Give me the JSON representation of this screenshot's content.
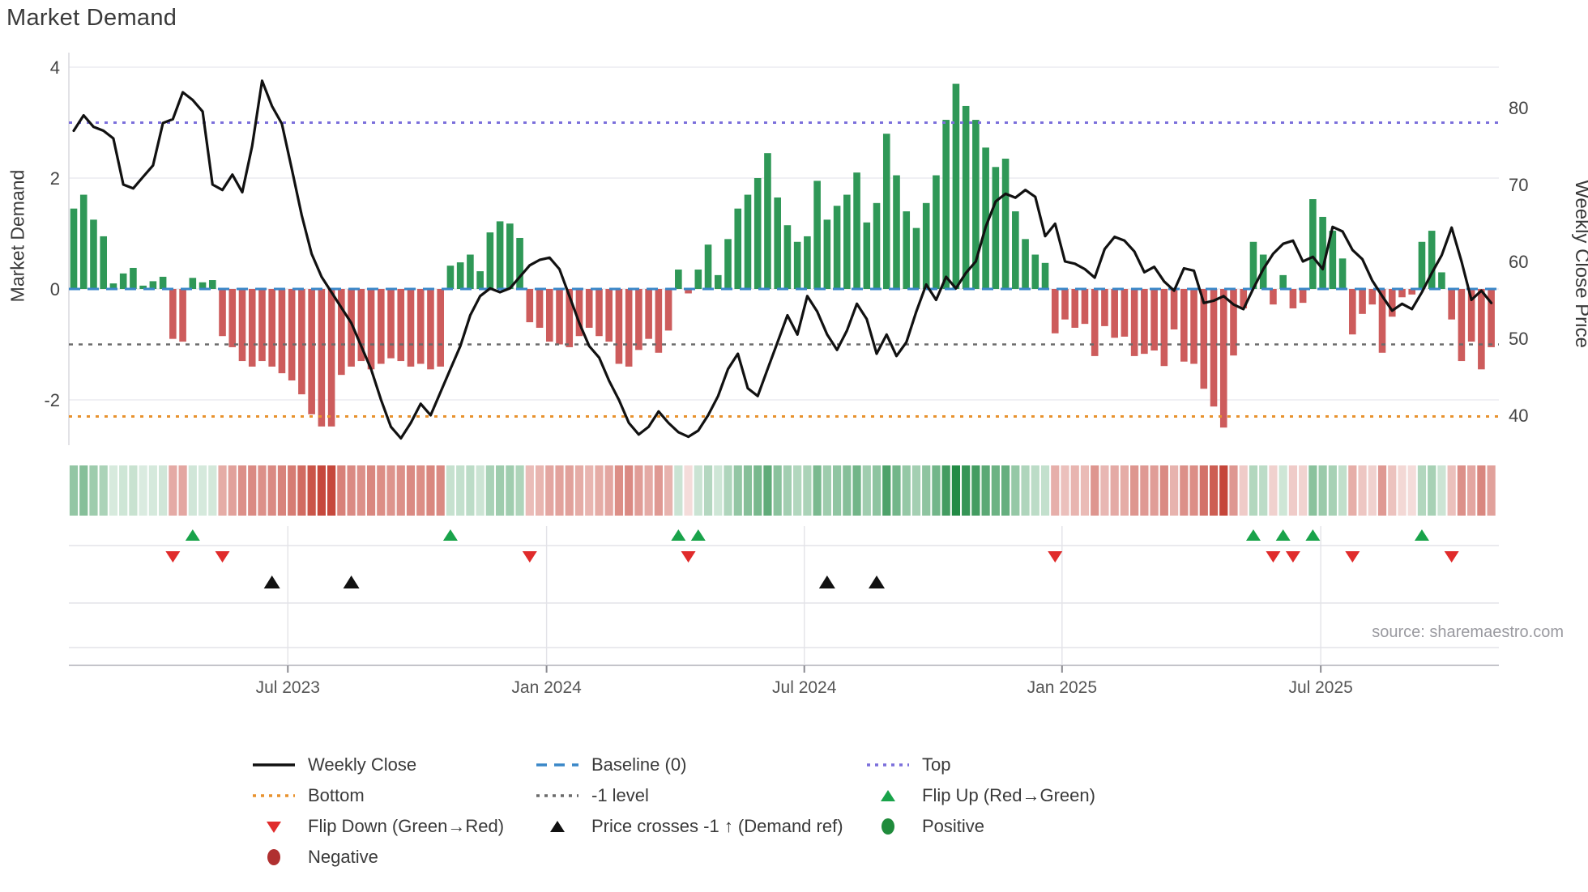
{
  "title": "Market Demand",
  "source": "source: sharemaestro.com",
  "axes": {
    "left": {
      "label": "Market Demand",
      "ticks": [
        4,
        2,
        0,
        -2
      ]
    },
    "right": {
      "label": "Weekly Close Price",
      "ticks": [
        80,
        70,
        60,
        50,
        40
      ]
    },
    "x": {
      "tick_labels": [
        "Jul 2023",
        "Jan 2024",
        "Jul 2024",
        "Jan 2025",
        "Jul 2025"
      ],
      "tick_weeks": [
        21.6,
        47.7,
        73.7,
        99.7,
        125.8
      ]
    }
  },
  "chart_data": {
    "type": "combo-bar-line",
    "title": "Market Demand",
    "ylabel_left": "Market Demand",
    "ylabel_right": "Weekly Close Price",
    "ylim_left": [
      -2.82,
      4.26
    ],
    "ylim_right": [
      36.1,
      87.2
    ],
    "x_unit": "week",
    "n_weeks": 144,
    "demand_bars": [
      1.45,
      1.7,
      1.25,
      0.95,
      0.1,
      0.28,
      0.38,
      0.06,
      0.14,
      0.22,
      -0.9,
      -0.95,
      0.2,
      0.12,
      0.16,
      -0.85,
      -1.05,
      -1.3,
      -1.4,
      -1.3,
      -1.4,
      -1.52,
      -1.65,
      -1.9,
      -2.26,
      -2.48,
      -2.48,
      -1.55,
      -1.4,
      -1.3,
      -1.45,
      -1.35,
      -1.25,
      -1.3,
      -1.4,
      -1.35,
      -1.45,
      -1.4,
      0.42,
      0.48,
      0.62,
      0.32,
      1.02,
      1.22,
      1.18,
      0.92,
      -0.6,
      -0.7,
      -0.95,
      -1.0,
      -1.05,
      -0.85,
      -0.7,
      -0.85,
      -0.95,
      -1.35,
      -1.4,
      -1.1,
      -0.9,
      -1.15,
      -0.75,
      0.35,
      -0.08,
      0.35,
      0.8,
      0.25,
      0.9,
      1.45,
      1.7,
      2.0,
      2.45,
      1.65,
      1.15,
      0.85,
      0.95,
      1.95,
      1.25,
      1.5,
      1.7,
      2.1,
      1.2,
      1.55,
      2.8,
      2.05,
      1.4,
      1.1,
      1.55,
      2.05,
      3.05,
      3.7,
      3.3,
      3.05,
      2.55,
      2.2,
      2.35,
      1.4,
      0.9,
      0.62,
      0.47,
      -0.8,
      -0.55,
      -0.7,
      -0.63,
      -1.21,
      -0.67,
      -0.88,
      -0.86,
      -1.21,
      -1.17,
      -1.11,
      -1.39,
      -0.73,
      -1.31,
      -1.35,
      -1.8,
      -2.12,
      -2.5,
      -1.2,
      -0.35,
      0.85,
      0.62,
      -0.28,
      0.25,
      -0.35,
      -0.25,
      1.62,
      1.3,
      1.05,
      0.55,
      -0.82,
      -0.45,
      -0.28,
      -1.15,
      -0.5,
      -0.15,
      -0.1,
      0.85,
      1.05,
      0.3,
      -0.55,
      -1.3,
      -0.95,
      -1.45,
      -1.05
    ],
    "weekly_close": [
      77,
      79,
      77.5,
      77,
      76,
      70,
      69.5,
      71,
      72.5,
      78,
      78.5,
      82,
      81,
      79.5,
      70,
      69.3,
      71.3,
      69,
      75,
      83.5,
      80.2,
      77.9,
      72,
      66,
      61,
      58,
      56,
      54,
      52,
      49,
      46,
      42,
      38.5,
      37,
      39,
      41.5,
      40,
      43,
      46,
      49,
      53,
      55.5,
      56.5,
      56,
      56.5,
      58,
      59.5,
      60.2,
      60.5,
      59,
      55.5,
      52,
      49,
      47.5,
      44.5,
      42,
      39,
      37.5,
      38.5,
      40.5,
      39,
      37.8,
      37.2,
      38,
      40,
      42.5,
      46,
      48,
      43.5,
      42.5,
      46,
      49.5,
      53,
      50.5,
      55.5,
      53.5,
      50.5,
      48.5,
      51,
      54.5,
      52.5,
      48,
      50.5,
      47.7,
      49.5,
      53.5,
      57,
      55,
      58,
      56.5,
      58.5,
      60,
      64.5,
      67.8,
      68.8,
      68.3,
      69.3,
      68.4,
      63.3,
      64.9,
      60,
      59.7,
      59,
      57.9,
      61.6,
      63.2,
      62.7,
      61.3,
      58.6,
      59.3,
      57.4,
      56.2,
      59.1,
      58.8,
      54.6,
      54.9,
      55.5,
      54.4,
      53.8,
      56.5,
      59,
      61,
      62.3,
      62.7,
      60,
      60.6,
      59,
      64.5,
      63.9,
      61.5,
      60.3,
      57.5,
      55.5,
      53.6,
      54.5,
      53.8,
      56,
      58.5,
      60.8,
      64.4,
      60,
      55,
      56.2,
      54.6
    ],
    "flip_up_weeks": [
      12,
      38,
      61,
      63,
      119,
      122,
      125,
      136
    ],
    "flip_down_weeks": [
      10,
      15,
      46,
      62,
      99,
      121,
      123,
      129,
      139
    ],
    "price_cross_weeks": [
      20,
      28,
      76,
      81
    ],
    "reference_lines": {
      "top": {
        "label": "Top",
        "value": 3.0,
        "color": "#7b6fdb"
      },
      "baseline": {
        "label": "Baseline (0)",
        "value": 0.0,
        "color": "#3a87c8"
      },
      "minus1": {
        "label": "-1 level",
        "value": -1.0,
        "color": "#6b6b6b"
      },
      "bottom": {
        "label": "Bottom",
        "value": -2.3,
        "color": "#e8922e"
      }
    },
    "colors": {
      "bar_positive": "#2f9857",
      "bar_negative": "#cd5c5c",
      "price_line": "#111111",
      "flip_up": "#19a34a",
      "flip_down": "#e02b2b",
      "price_cross": "#111111",
      "positive_dot": "#1f8b3b",
      "negative_dot": "#b03030",
      "grid": "#ececf1",
      "panel_grid": "#e3e3e8"
    },
    "legend_position": "bottom",
    "grid": true
  },
  "legend": {
    "columns": [
      {
        "items": [
          {
            "label": "Weekly Close",
            "swatch": "line-solid",
            "color": "#111111"
          },
          {
            "label": "Bottom",
            "swatch": "line-dotted",
            "color": "#e8922e"
          },
          {
            "label": "Flip Down (Green→Red)",
            "swatch": "tri-down",
            "color": "#e02b2b"
          },
          {
            "label": "Negative",
            "swatch": "circle",
            "color": "#b03030"
          }
        ]
      },
      {
        "items": [
          {
            "label": "Baseline (0)",
            "swatch": "line-dashed",
            "color": "#3a87c8"
          },
          {
            "label": "-1 level",
            "swatch": "line-dotted",
            "color": "#6b6b6b"
          },
          {
            "label": "Price crosses -1 ↑ (Demand ref)",
            "swatch": "tri-up",
            "color": "#111111"
          }
        ]
      },
      {
        "items": [
          {
            "label": "Top",
            "swatch": "line-dotted",
            "color": "#7b6fdb"
          },
          {
            "label": "Flip Up (Red→Green)",
            "swatch": "tri-up",
            "color": "#19a34a"
          },
          {
            "label": "Positive",
            "swatch": "circle",
            "color": "#1f8b3b"
          }
        ]
      }
    ]
  }
}
